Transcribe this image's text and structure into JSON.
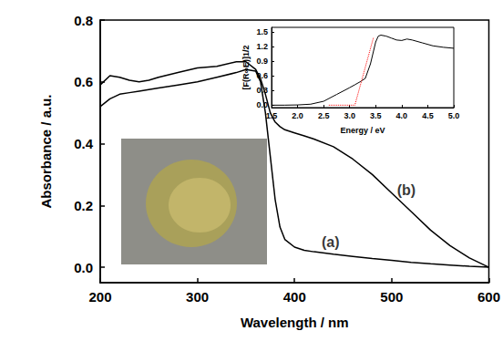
{
  "chart_data": [
    {
      "type": "line",
      "xlabel": "Wavelength / nm",
      "ylabel": "Absorbance / a.u.",
      "xlim": [
        200,
        600
      ],
      "xticks": [
        200,
        300,
        400,
        500,
        600
      ],
      "ylim": [
        -0.05,
        0.8
      ],
      "yticks": [
        {
          "value": 0,
          "label": "0.0"
        },
        {
          "value": 0.2,
          "label": "0.2"
        },
        {
          "value": 0.4,
          "label": "0.4"
        },
        {
          "value": 0.6,
          "label": "0.6"
        },
        {
          "value": 0.8,
          "label": "0.8"
        }
      ],
      "x": [
        200,
        210,
        220,
        230,
        240,
        250,
        260,
        280,
        300,
        320,
        340,
        350,
        360,
        365,
        370,
        375,
        380,
        385,
        390,
        400,
        410,
        420,
        440,
        460,
        480,
        500,
        520,
        540,
        560,
        580,
        600
      ],
      "series": [
        {
          "color": "#000000",
          "line_style": "solid",
          "values": [
            0.52,
            0.545,
            0.56,
            0.565,
            0.57,
            0.575,
            0.58,
            0.59,
            0.6,
            0.615,
            0.63,
            0.64,
            0.635,
            0.6,
            0.5,
            0.36,
            0.22,
            0.13,
            0.09,
            0.065,
            0.055,
            0.05,
            0.042,
            0.035,
            0.028,
            0.022,
            0.016,
            0.011,
            0.007,
            0.003,
            0.0
          ]
        },
        {
          "color": "#000000",
          "line_style": "solid",
          "values": [
            0.59,
            0.62,
            0.615,
            0.605,
            0.6,
            0.605,
            0.615,
            0.63,
            0.645,
            0.65,
            0.665,
            0.665,
            0.64,
            0.61,
            0.56,
            0.5,
            0.47,
            0.455,
            0.445,
            0.435,
            0.425,
            0.415,
            0.39,
            0.35,
            0.3,
            0.24,
            0.18,
            0.12,
            0.07,
            0.03,
            0.0
          ]
        }
      ],
      "annotations": [
        {
          "text": "(a)",
          "x": 437,
          "y": 0.08
        },
        {
          "text": "(b)",
          "x": 515,
          "y": 0.25
        }
      ],
      "grid": false
    },
    {
      "type": "line",
      "xlabel": "Energy / eV",
      "ylabel": "[F(R∞E)]1/2",
      "xlim": [
        1.5,
        5.0
      ],
      "xticks": [
        {
          "value": 1.5,
          "label": "1.5"
        },
        {
          "value": 2,
          "label": "2.0"
        },
        {
          "value": 2.5,
          "label": "2.5"
        },
        {
          "value": 3,
          "label": "3.0"
        },
        {
          "value": 3.5,
          "label": "3.5"
        },
        {
          "value": 4,
          "label": "4.0"
        },
        {
          "value": 4.5,
          "label": "4.5"
        },
        {
          "value": 5,
          "label": "5.0"
        }
      ],
      "ylim": [
        -0.05,
        1.6
      ],
      "yticks": [
        {
          "value": 0,
          "label": "0.0"
        },
        {
          "value": 0.3,
          "label": "0.3"
        },
        {
          "value": 0.6,
          "label": "0.6"
        },
        {
          "value": 0.9,
          "label": "0.9"
        },
        {
          "value": 1.2,
          "label": "1.2"
        },
        {
          "value": 1.5,
          "label": "1.5"
        }
      ],
      "x": [
        1.5,
        1.75,
        2.0,
        2.25,
        2.5,
        2.75,
        3.0,
        3.1,
        3.2,
        3.3,
        3.4,
        3.5,
        3.55,
        3.6,
        3.7,
        3.8,
        3.9,
        4.0,
        4.1,
        4.2,
        4.4,
        4.6,
        4.8,
        5.0
      ],
      "series": [
        {
          "color": "#000000",
          "line_style": "solid",
          "values": [
            0,
            0,
            0.005,
            0.02,
            0.08,
            0.22,
            0.36,
            0.42,
            0.48,
            0.55,
            0.85,
            1.3,
            1.42,
            1.44,
            1.42,
            1.38,
            1.34,
            1.33,
            1.36,
            1.34,
            1.28,
            1.22,
            1.19,
            1.17
          ]
        },
        {
          "color": "#ff0000",
          "line_style": "dotted",
          "x": [
            2.6,
            3.1,
            3.46
          ],
          "values": [
            0,
            0,
            1.4
          ]
        }
      ],
      "grid": false
    }
  ]
}
